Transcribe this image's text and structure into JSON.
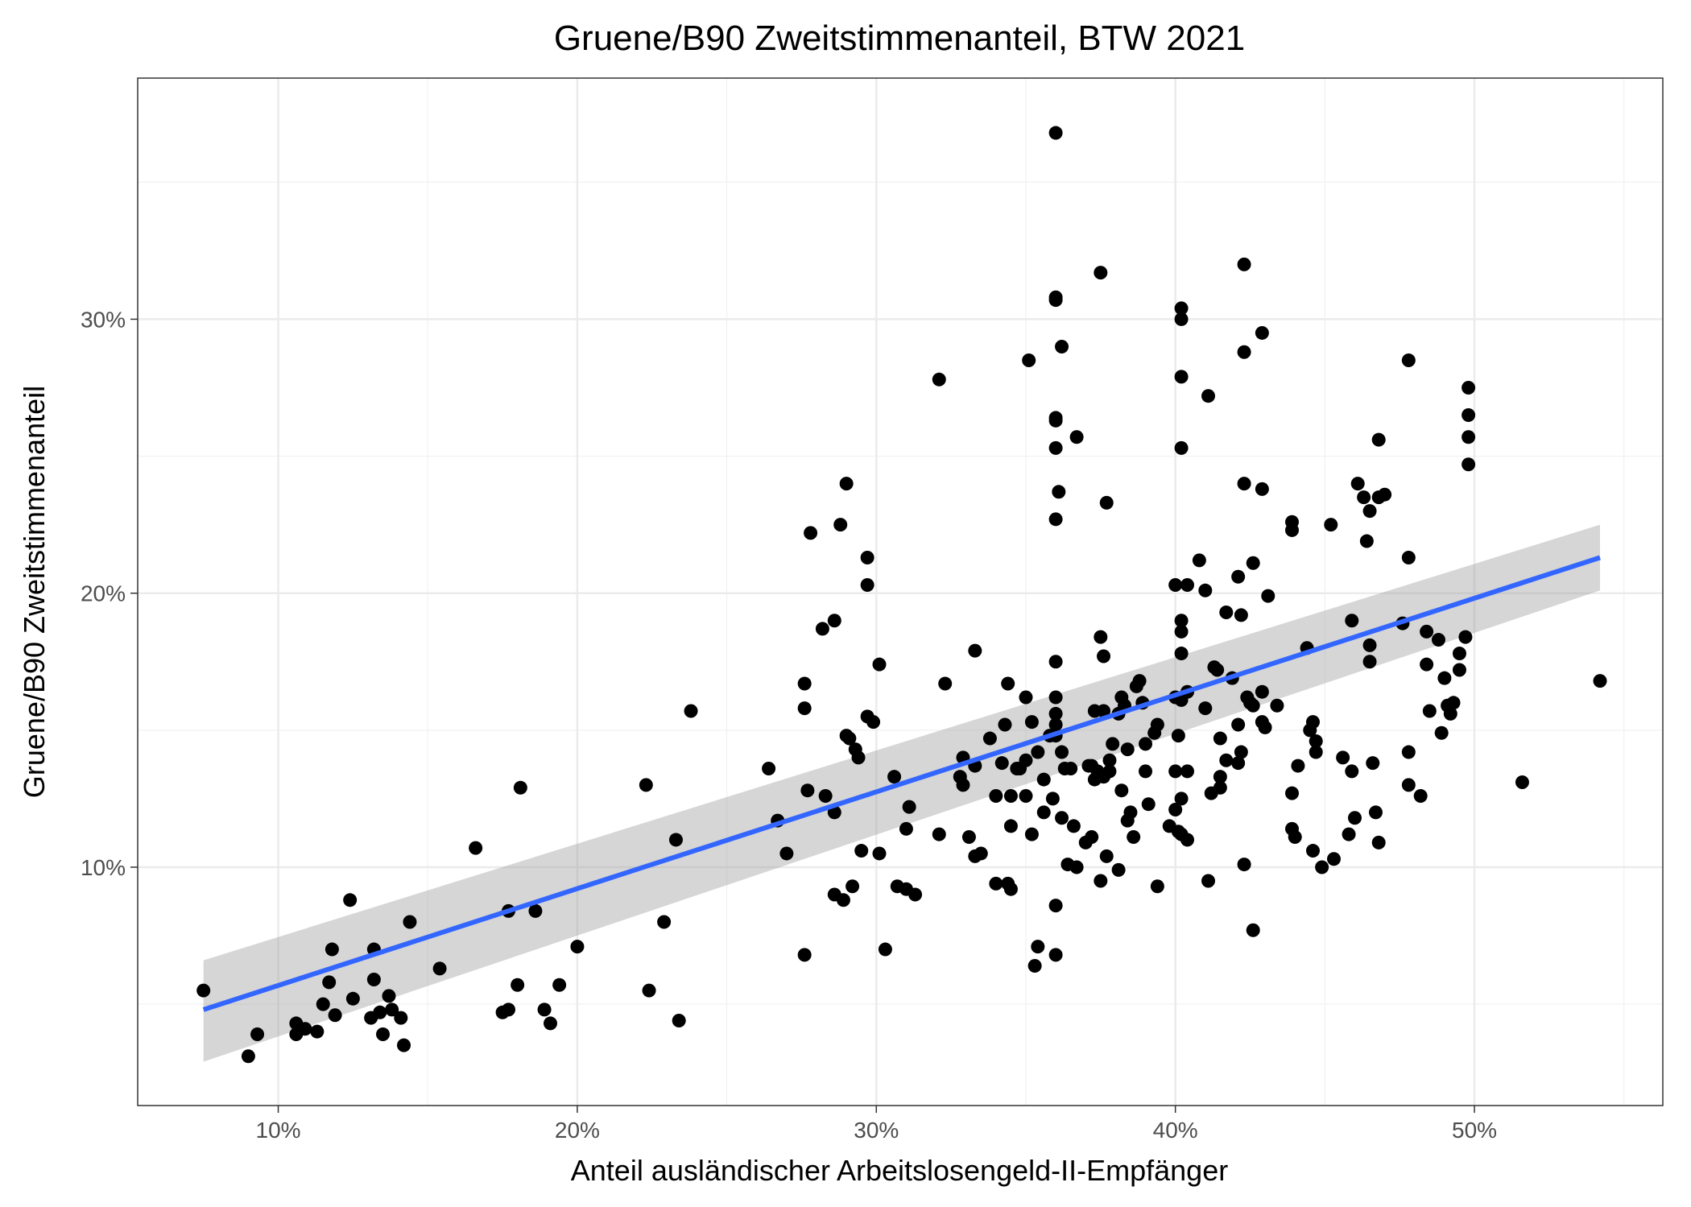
{
  "chart_data": {
    "type": "scatter",
    "title": "Gruene/B90 Zweitstimmenanteil, BTW 2021",
    "xlabel": "Anteil ausländischer Arbeitslosengeld-II-Empfänger",
    "ylabel": "Gruene/B90 Zweitstimmenanteil",
    "xlim": [
      5.3,
      56.3
    ],
    "ylim": [
      1.3,
      38.8
    ],
    "x_ticks": [
      10,
      20,
      30,
      40,
      50
    ],
    "x_tick_labels": [
      "10%",
      "20%",
      "30%",
      "40%",
      "50%"
    ],
    "y_ticks": [
      10,
      20,
      30
    ],
    "y_tick_labels": [
      "10%",
      "20%",
      "30%"
    ],
    "grid": true,
    "legend": "none",
    "colors": {
      "points": "#000000",
      "fit_line": "#3366ff",
      "confidence_band": "#999999"
    },
    "fit": {
      "method": "linear",
      "line": [
        [
          7.5,
          4.8
        ],
        [
          54.2,
          21.3
        ]
      ],
      "band_lower": [
        [
          7.5,
          2.9
        ],
        [
          54.2,
          20.1
        ]
      ],
      "band_upper": [
        [
          7.5,
          6.6
        ],
        [
          54.2,
          22.5
        ]
      ]
    },
    "points": [
      [
        7.5,
        5.5
      ],
      [
        9.0,
        3.1
      ],
      [
        9.3,
        3.9
      ],
      [
        10.6,
        4.3
      ],
      [
        10.6,
        3.9
      ],
      [
        10.9,
        4.1
      ],
      [
        11.3,
        4.0
      ],
      [
        11.5,
        5.0
      ],
      [
        11.7,
        5.8
      ],
      [
        11.8,
        7.0
      ],
      [
        11.9,
        4.6
      ],
      [
        12.4,
        8.8
      ],
      [
        12.5,
        5.2
      ],
      [
        13.1,
        4.5
      ],
      [
        13.2,
        7.0
      ],
      [
        13.2,
        5.9
      ],
      [
        13.4,
        4.7
      ],
      [
        13.5,
        3.9
      ],
      [
        13.7,
        5.3
      ],
      [
        13.8,
        4.8
      ],
      [
        14.1,
        4.5
      ],
      [
        14.2,
        3.5
      ],
      [
        14.4,
        8.0
      ],
      [
        15.4,
        6.3
      ],
      [
        16.6,
        10.7
      ],
      [
        17.5,
        4.7
      ],
      [
        17.7,
        8.4
      ],
      [
        17.7,
        4.8
      ],
      [
        18.0,
        5.7
      ],
      [
        18.1,
        12.9
      ],
      [
        18.6,
        8.4
      ],
      [
        18.9,
        4.8
      ],
      [
        19.1,
        4.3
      ],
      [
        19.4,
        5.7
      ],
      [
        20.0,
        7.1
      ],
      [
        22.3,
        13.0
      ],
      [
        22.4,
        5.5
      ],
      [
        22.9,
        8.0
      ],
      [
        23.3,
        11.0
      ],
      [
        23.4,
        4.4
      ],
      [
        23.8,
        15.7
      ],
      [
        26.4,
        13.6
      ],
      [
        26.7,
        11.7
      ],
      [
        27.0,
        10.5
      ],
      [
        27.6,
        16.7
      ],
      [
        27.6,
        15.8
      ],
      [
        27.6,
        6.8
      ],
      [
        27.7,
        12.8
      ],
      [
        27.8,
        22.2
      ],
      [
        28.2,
        18.7
      ],
      [
        28.3,
        12.6
      ],
      [
        28.6,
        19.0
      ],
      [
        28.6,
        12.0
      ],
      [
        28.6,
        9.0
      ],
      [
        28.8,
        22.5
      ],
      [
        28.9,
        8.8
      ],
      [
        29.0,
        24.0
      ],
      [
        29.0,
        14.8
      ],
      [
        29.1,
        14.7
      ],
      [
        29.2,
        9.3
      ],
      [
        29.3,
        14.3
      ],
      [
        29.4,
        14.0
      ],
      [
        29.5,
        10.6
      ],
      [
        29.7,
        21.3
      ],
      [
        29.7,
        20.3
      ],
      [
        29.7,
        15.5
      ],
      [
        29.9,
        15.3
      ],
      [
        30.1,
        17.4
      ],
      [
        30.1,
        10.5
      ],
      [
        30.3,
        7.0
      ],
      [
        30.6,
        13.3
      ],
      [
        30.7,
        9.3
      ],
      [
        31.0,
        11.4
      ],
      [
        31.0,
        9.2
      ],
      [
        31.1,
        12.2
      ],
      [
        31.3,
        9.0
      ],
      [
        32.1,
        27.8
      ],
      [
        32.1,
        11.2
      ],
      [
        32.3,
        16.7
      ],
      [
        32.8,
        13.3
      ],
      [
        32.9,
        13.0
      ],
      [
        32.9,
        14.0
      ],
      [
        33.1,
        11.1
      ],
      [
        33.3,
        17.9
      ],
      [
        33.3,
        10.4
      ],
      [
        33.3,
        13.7
      ],
      [
        33.5,
        10.5
      ],
      [
        33.8,
        14.7
      ],
      [
        34.0,
        12.6
      ],
      [
        34.0,
        9.4
      ],
      [
        34.2,
        13.8
      ],
      [
        34.3,
        15.2
      ],
      [
        34.4,
        9.4
      ],
      [
        34.4,
        16.7
      ],
      [
        34.5,
        12.6
      ],
      [
        34.5,
        11.5
      ],
      [
        34.5,
        9.2
      ],
      [
        34.7,
        13.6
      ],
      [
        34.8,
        13.6
      ],
      [
        35.0,
        12.6
      ],
      [
        35.0,
        16.2
      ],
      [
        35.0,
        13.9
      ],
      [
        35.1,
        28.5
      ],
      [
        35.2,
        15.3
      ],
      [
        35.2,
        11.2
      ],
      [
        35.3,
        6.4
      ],
      [
        35.4,
        14.2
      ],
      [
        35.4,
        7.1
      ],
      [
        35.6,
        13.2
      ],
      [
        35.6,
        12.0
      ],
      [
        35.8,
        14.8
      ],
      [
        35.9,
        12.5
      ],
      [
        36.0,
        36.8
      ],
      [
        36.0,
        30.8
      ],
      [
        36.0,
        30.7
      ],
      [
        36.0,
        26.4
      ],
      [
        36.0,
        26.3
      ],
      [
        36.0,
        25.3
      ],
      [
        36.0,
        22.7
      ],
      [
        36.0,
        17.5
      ],
      [
        36.0,
        16.2
      ],
      [
        36.0,
        15.6
      ],
      [
        36.0,
        15.2
      ],
      [
        36.0,
        14.8
      ],
      [
        36.0,
        8.6
      ],
      [
        36.0,
        6.8
      ],
      [
        36.1,
        23.7
      ],
      [
        36.2,
        29.0
      ],
      [
        36.2,
        14.2
      ],
      [
        36.2,
        11.8
      ],
      [
        36.3,
        13.6
      ],
      [
        36.4,
        10.1
      ],
      [
        36.5,
        13.6
      ],
      [
        36.6,
        11.5
      ],
      [
        36.7,
        25.7
      ],
      [
        36.7,
        10.0
      ],
      [
        37.0,
        10.9
      ],
      [
        37.1,
        13.7
      ],
      [
        37.2,
        13.7
      ],
      [
        37.2,
        11.1
      ],
      [
        37.3,
        15.7
      ],
      [
        37.3,
        13.2
      ],
      [
        37.4,
        13.5
      ],
      [
        37.5,
        18.4
      ],
      [
        37.5,
        31.7
      ],
      [
        37.5,
        9.5
      ],
      [
        37.6,
        17.7
      ],
      [
        37.6,
        15.7
      ],
      [
        37.6,
        13.3
      ],
      [
        37.7,
        23.3
      ],
      [
        37.7,
        10.4
      ],
      [
        37.8,
        13.5
      ],
      [
        37.8,
        13.9
      ],
      [
        37.9,
        14.5
      ],
      [
        38.1,
        15.6
      ],
      [
        38.1,
        9.9
      ],
      [
        38.2,
        16.2
      ],
      [
        38.2,
        12.8
      ],
      [
        38.3,
        15.9
      ],
      [
        38.4,
        14.3
      ],
      [
        38.4,
        11.7
      ],
      [
        38.5,
        12.0
      ],
      [
        38.6,
        11.1
      ],
      [
        38.7,
        16.6
      ],
      [
        38.8,
        16.8
      ],
      [
        38.9,
        16.0
      ],
      [
        39.0,
        13.5
      ],
      [
        39.0,
        14.5
      ],
      [
        39.1,
        12.3
      ],
      [
        39.3,
        14.9
      ],
      [
        39.4,
        15.2
      ],
      [
        39.4,
        9.3
      ],
      [
        39.8,
        11.5
      ],
      [
        40.0,
        20.3
      ],
      [
        40.0,
        16.2
      ],
      [
        40.0,
        12.1
      ],
      [
        40.0,
        13.5
      ],
      [
        40.1,
        14.8
      ],
      [
        40.1,
        11.3
      ],
      [
        40.2,
        30.4
      ],
      [
        40.2,
        30.0
      ],
      [
        40.2,
        27.9
      ],
      [
        40.2,
        25.3
      ],
      [
        40.2,
        19.0
      ],
      [
        40.2,
        18.6
      ],
      [
        40.2,
        17.8
      ],
      [
        40.2,
        16.1
      ],
      [
        40.2,
        12.5
      ],
      [
        40.2,
        11.2
      ],
      [
        40.4,
        20.3
      ],
      [
        40.4,
        16.4
      ],
      [
        40.4,
        13.5
      ],
      [
        40.4,
        11.0
      ],
      [
        40.8,
        21.2
      ],
      [
        41.0,
        20.1
      ],
      [
        41.0,
        15.8
      ],
      [
        41.1,
        27.2
      ],
      [
        41.1,
        9.5
      ],
      [
        41.2,
        12.7
      ],
      [
        41.3,
        17.3
      ],
      [
        41.4,
        17.2
      ],
      [
        41.5,
        14.7
      ],
      [
        41.5,
        13.3
      ],
      [
        41.5,
        12.9
      ],
      [
        41.7,
        19.3
      ],
      [
        41.7,
        13.9
      ],
      [
        41.9,
        16.9
      ],
      [
        42.1,
        20.6
      ],
      [
        42.1,
        15.2
      ],
      [
        42.1,
        13.8
      ],
      [
        42.2,
        19.2
      ],
      [
        42.2,
        14.2
      ],
      [
        42.3,
        32.0
      ],
      [
        42.3,
        28.8
      ],
      [
        42.3,
        24.0
      ],
      [
        42.3,
        10.1
      ],
      [
        42.4,
        16.2
      ],
      [
        42.5,
        16.0
      ],
      [
        42.6,
        21.1
      ],
      [
        42.6,
        15.9
      ],
      [
        42.6,
        7.7
      ],
      [
        42.9,
        29.5
      ],
      [
        42.9,
        23.8
      ],
      [
        42.9,
        16.4
      ],
      [
        42.9,
        15.3
      ],
      [
        43.0,
        15.1
      ],
      [
        43.1,
        19.9
      ],
      [
        43.4,
        15.9
      ],
      [
        43.9,
        22.6
      ],
      [
        43.9,
        22.3
      ],
      [
        43.9,
        12.7
      ],
      [
        43.9,
        11.4
      ],
      [
        44.0,
        11.1
      ],
      [
        44.1,
        13.7
      ],
      [
        44.4,
        18.0
      ],
      [
        44.5,
        15.0
      ],
      [
        44.6,
        15.3
      ],
      [
        44.6,
        10.6
      ],
      [
        44.7,
        14.2
      ],
      [
        44.7,
        14.6
      ],
      [
        44.9,
        10.0
      ],
      [
        45.2,
        22.5
      ],
      [
        45.3,
        10.3
      ],
      [
        45.6,
        14.0
      ],
      [
        45.8,
        11.2
      ],
      [
        45.9,
        19.0
      ],
      [
        45.9,
        13.5
      ],
      [
        46.0,
        11.8
      ],
      [
        46.1,
        24.0
      ],
      [
        46.3,
        23.5
      ],
      [
        46.4,
        21.9
      ],
      [
        46.5,
        23.0
      ],
      [
        46.5,
        18.1
      ],
      [
        46.5,
        17.5
      ],
      [
        46.6,
        13.8
      ],
      [
        46.7,
        12.0
      ],
      [
        46.8,
        25.6
      ],
      [
        46.8,
        23.5
      ],
      [
        46.8,
        10.9
      ],
      [
        47.0,
        23.6
      ],
      [
        47.6,
        18.9
      ],
      [
        47.8,
        28.5
      ],
      [
        47.8,
        21.3
      ],
      [
        47.8,
        14.2
      ],
      [
        47.8,
        13.0
      ],
      [
        48.2,
        12.6
      ],
      [
        48.4,
        18.6
      ],
      [
        48.4,
        17.4
      ],
      [
        48.5,
        15.7
      ],
      [
        48.8,
        18.3
      ],
      [
        48.9,
        14.9
      ],
      [
        49.0,
        16.9
      ],
      [
        49.1,
        15.9
      ],
      [
        49.2,
        15.6
      ],
      [
        49.3,
        16.0
      ],
      [
        49.5,
        17.2
      ],
      [
        49.5,
        17.8
      ],
      [
        49.7,
        18.4
      ],
      [
        49.8,
        27.5
      ],
      [
        49.8,
        26.5
      ],
      [
        49.8,
        25.7
      ],
      [
        49.8,
        24.7
      ],
      [
        51.6,
        13.1
      ],
      [
        54.2,
        16.8
      ]
    ]
  }
}
